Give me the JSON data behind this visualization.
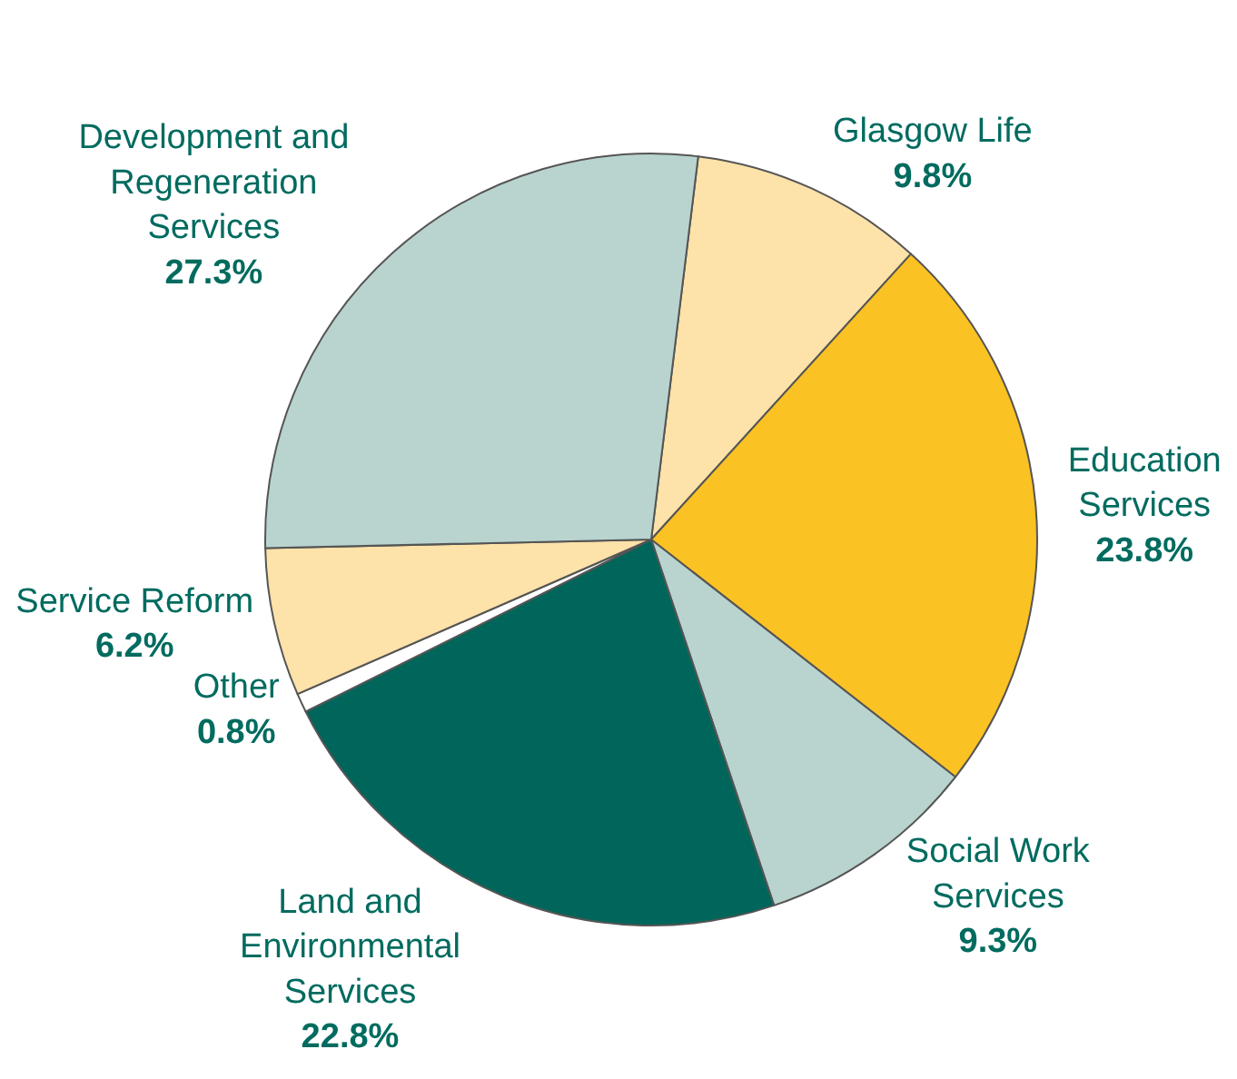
{
  "chart_data": {
    "type": "pie",
    "categories": [
      "Glasgow Life",
      "Education Services",
      "Social Work Services",
      "Land and Environmental Services",
      "Other",
      "Service Reform",
      "Development and Regeneration Services"
    ],
    "values": [
      9.8,
      23.8,
      9.3,
      22.8,
      0.8,
      6.2,
      27.3
    ],
    "colors": [
      "#fde2a9",
      "#fbc223",
      "#b9d4cf",
      "#00665b",
      "#ffffff",
      "#fde2a9",
      "#b9d4cf"
    ],
    "value_labels": [
      "9.8%",
      "23.8%",
      "9.3%",
      "22.8%",
      "0.8%",
      "6.2%",
      "27.3%"
    ],
    "legend": false
  }
}
